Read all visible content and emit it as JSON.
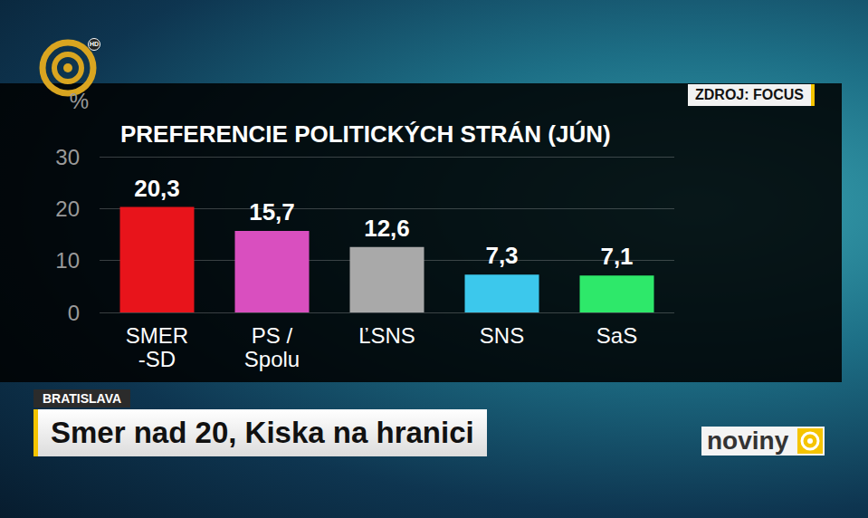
{
  "chart_data": {
    "type": "bar",
    "title": "PREFERENCIE POLITICKÝCH STRÁN (JÚN)",
    "ylabel": "%",
    "categories": [
      "SMER\n-SD",
      "PS /\nSpolu",
      "ĽSNS",
      "SNS",
      "SaS"
    ],
    "values": [
      20.3,
      15.7,
      12.6,
      7.3,
      7.1
    ],
    "value_labels": [
      "20,3",
      "15,7",
      "12,6",
      "7,3",
      "7,1"
    ],
    "colors": [
      "#e8141b",
      "#d94fbf",
      "#a9a9a9",
      "#3cc8ec",
      "#2ee86a"
    ],
    "ylim": [
      0,
      30
    ],
    "yticks": [
      0,
      10,
      20,
      30
    ],
    "grid": true,
    "data_labels": true
  },
  "source": "ZDROJ: FOCUS",
  "location": "BRATISLAVA",
  "headline": "Smer nad 20, Kiska na hranici",
  "brand": "noviny",
  "logo_badge": "HD"
}
